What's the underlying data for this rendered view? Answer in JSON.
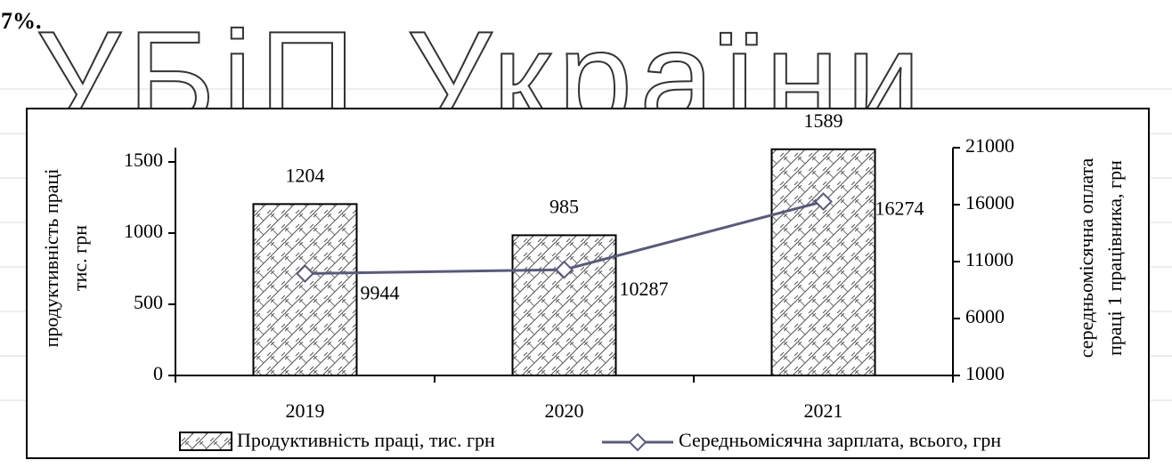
{
  "header": {
    "note": "7%.",
    "watermark": "УБіП України"
  },
  "chart_data": {
    "type": "bar_line",
    "categories": [
      "2019",
      "2020",
      "2021"
    ],
    "series": [
      {
        "name": "Продуктивність праці, тис. грн",
        "type": "bar",
        "color": "#000000",
        "values": [
          1204,
          985,
          1589
        ]
      },
      {
        "name": "Середньомісячна зарплата, всього, грн",
        "type": "line",
        "axis": "y2",
        "color": "#5a5a7a",
        "values": [
          9944,
          10287,
          16274
        ]
      }
    ],
    "ylabel": [
      "продуктивність праці",
      "тис. грн"
    ],
    "y2label": [
      "середньомісячна оплата",
      "праці 1 працівника, грн"
    ],
    "ylim": [
      0,
      1600
    ],
    "yticks": [
      0,
      500,
      1000,
      1500
    ],
    "y2lim": [
      1000,
      21000
    ],
    "y2ticks": [
      1000,
      6000,
      11000,
      16000,
      21000
    ],
    "legend": "bottom"
  }
}
